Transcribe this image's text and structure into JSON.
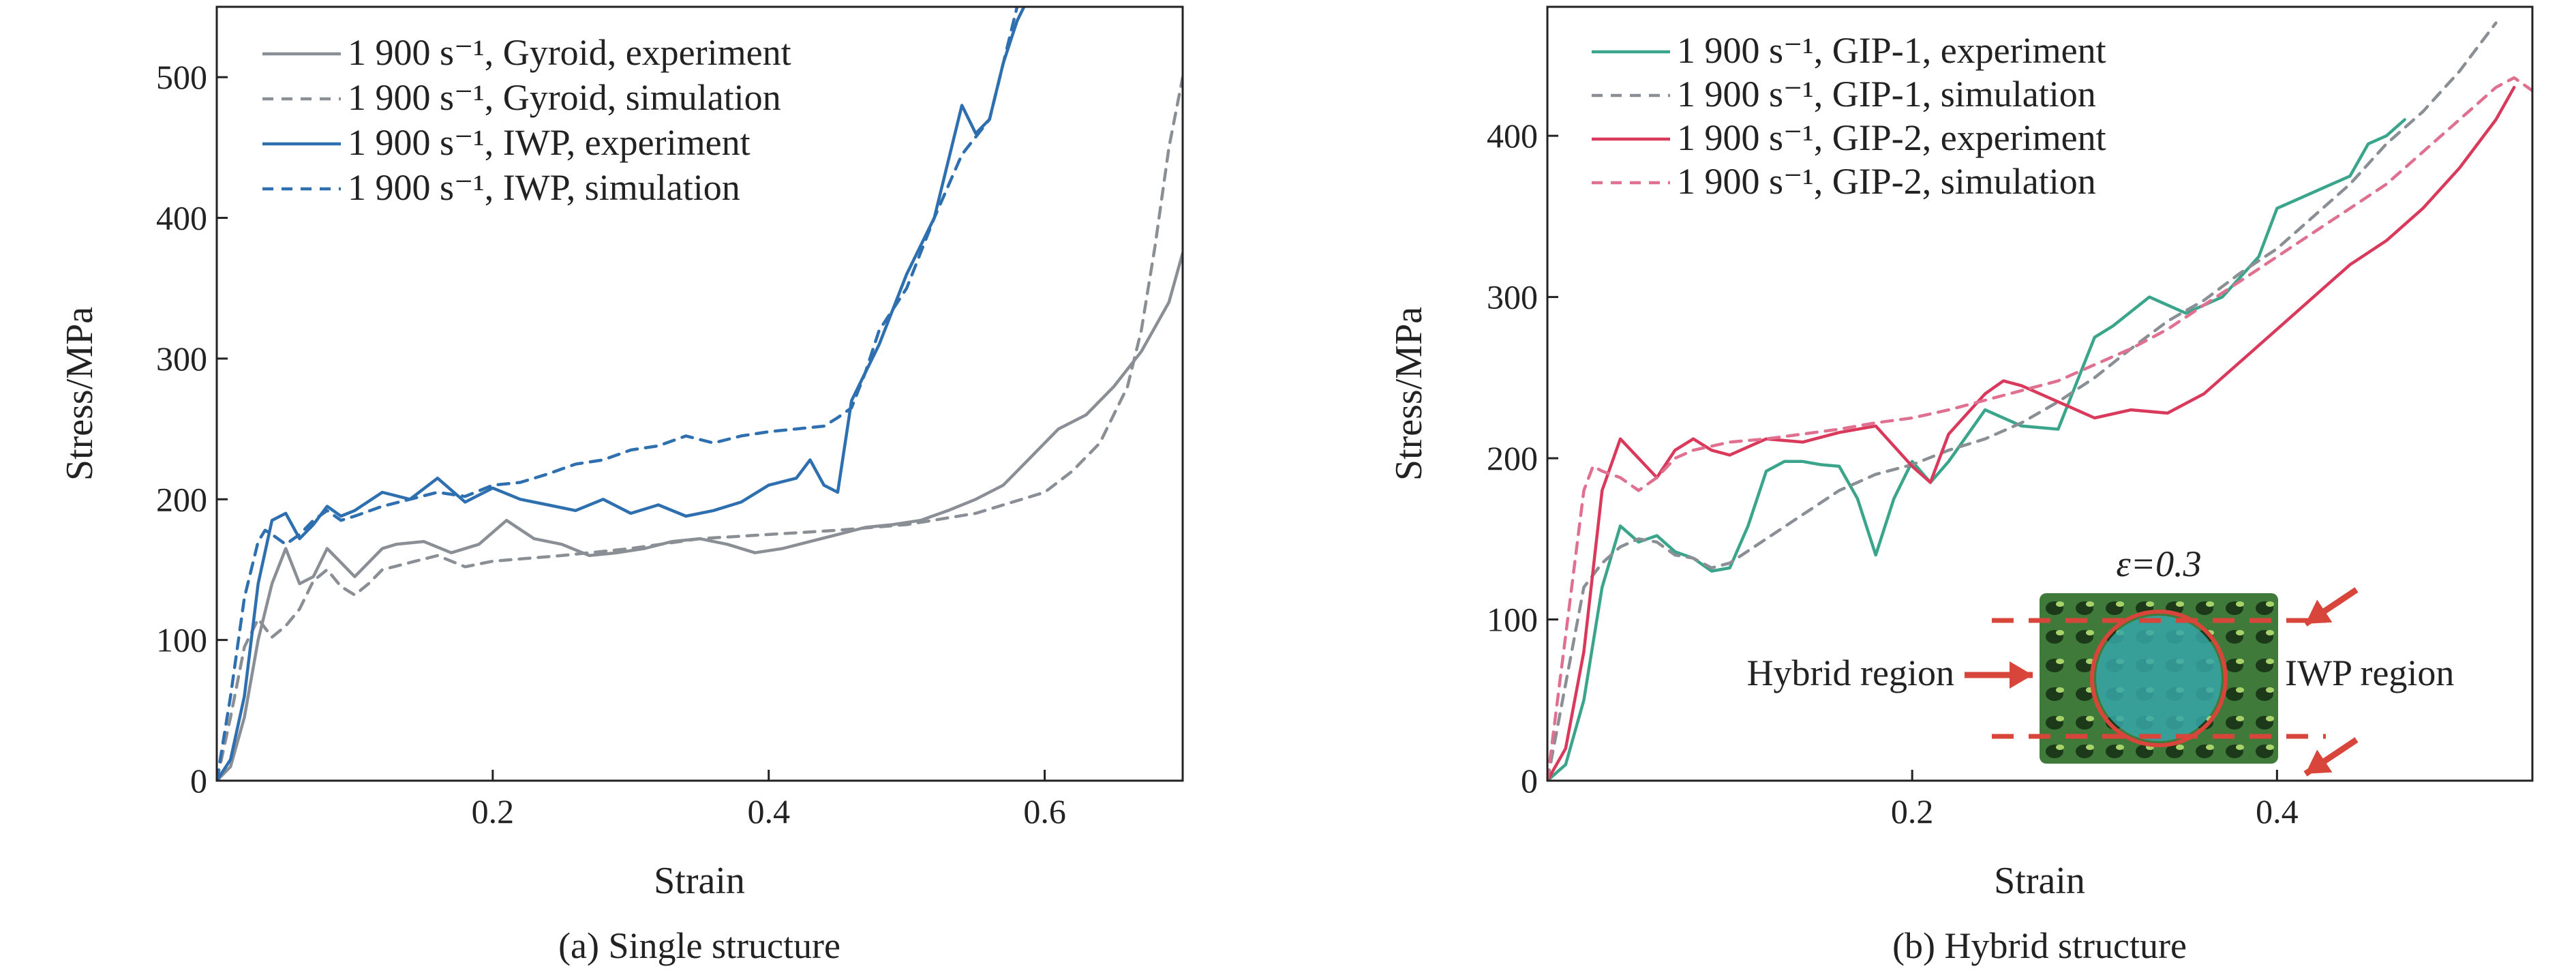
{
  "chart_data": [
    {
      "type": "line",
      "caption": "(a) Single structure",
      "xlabel": "Strain",
      "ylabel": "Stress/MPa",
      "xlim": [
        0,
        0.7
      ],
      "ylim": [
        0,
        550
      ],
      "xticks": [
        0.2,
        0.4,
        0.6
      ],
      "yticks": [
        0,
        100,
        200,
        300,
        400,
        500
      ],
      "legend_position": "top-left",
      "series": [
        {
          "name": "1 900 s⁻¹, Gyroid, experiment",
          "color": "#8a8f96",
          "dash": "solid",
          "x": [
            0,
            0.01,
            0.02,
            0.03,
            0.04,
            0.05,
            0.06,
            0.07,
            0.08,
            0.09,
            0.1,
            0.11,
            0.12,
            0.13,
            0.15,
            0.17,
            0.19,
            0.21,
            0.23,
            0.25,
            0.27,
            0.29,
            0.31,
            0.33,
            0.35,
            0.37,
            0.39,
            0.41,
            0.43,
            0.45,
            0.47,
            0.49,
            0.51,
            0.53,
            0.55,
            0.57,
            0.59,
            0.61,
            0.63,
            0.65,
            0.67,
            0.69,
            0.7
          ],
          "y": [
            0,
            10,
            45,
            100,
            140,
            165,
            140,
            145,
            165,
            155,
            145,
            155,
            165,
            168,
            170,
            162,
            168,
            185,
            172,
            168,
            160,
            162,
            165,
            170,
            172,
            168,
            162,
            165,
            170,
            175,
            180,
            182,
            185,
            192,
            200,
            210,
            230,
            250,
            260,
            280,
            305,
            340,
            375
          ]
        },
        {
          "name": "1 900 s⁻¹, Gyroid, simulation",
          "color": "#8a8f96",
          "dash": "dashed",
          "x": [
            0,
            0.01,
            0.02,
            0.03,
            0.04,
            0.05,
            0.06,
            0.07,
            0.08,
            0.09,
            0.1,
            0.11,
            0.12,
            0.14,
            0.16,
            0.18,
            0.2,
            0.25,
            0.3,
            0.35,
            0.4,
            0.45,
            0.5,
            0.55,
            0.6,
            0.62,
            0.64,
            0.66,
            0.67,
            0.68,
            0.69,
            0.7
          ],
          "y": [
            0,
            45,
            95,
            115,
            102,
            110,
            122,
            142,
            150,
            138,
            132,
            140,
            150,
            155,
            160,
            152,
            156,
            160,
            165,
            172,
            175,
            178,
            182,
            190,
            205,
            220,
            240,
            280,
            320,
            380,
            450,
            500
          ]
        },
        {
          "name": "1 900 s⁻¹, IWP, experiment",
          "color": "#2e6fb0",
          "dash": "solid",
          "x": [
            0,
            0.01,
            0.02,
            0.03,
            0.04,
            0.05,
            0.06,
            0.07,
            0.08,
            0.09,
            0.1,
            0.12,
            0.14,
            0.16,
            0.18,
            0.2,
            0.22,
            0.24,
            0.26,
            0.28,
            0.3,
            0.32,
            0.34,
            0.36,
            0.38,
            0.4,
            0.42,
            0.43,
            0.44,
            0.45,
            0.46,
            0.47,
            0.48,
            0.5,
            0.52,
            0.54,
            0.55,
            0.56,
            0.57,
            0.58,
            0.59
          ],
          "y": [
            0,
            15,
            60,
            140,
            185,
            190,
            172,
            182,
            195,
            188,
            192,
            205,
            200,
            215,
            198,
            208,
            200,
            196,
            192,
            200,
            190,
            196,
            188,
            192,
            198,
            210,
            215,
            228,
            210,
            205,
            270,
            290,
            310,
            360,
            400,
            480,
            460,
            470,
            510,
            540,
            560
          ]
        },
        {
          "name": "1 900 s⁻¹, IWP, simulation",
          "color": "#2e6fb0",
          "dash": "dashed",
          "x": [
            0,
            0.01,
            0.02,
            0.03,
            0.035,
            0.04,
            0.05,
            0.06,
            0.07,
            0.08,
            0.09,
            0.1,
            0.12,
            0.14,
            0.16,
            0.18,
            0.2,
            0.22,
            0.24,
            0.26,
            0.28,
            0.3,
            0.32,
            0.34,
            0.36,
            0.38,
            0.4,
            0.42,
            0.44,
            0.45,
            0.46,
            0.47,
            0.48,
            0.5,
            0.52,
            0.54,
            0.56,
            0.58
          ],
          "y": [
            0,
            60,
            130,
            170,
            178,
            175,
            168,
            175,
            185,
            192,
            185,
            188,
            195,
            200,
            205,
            202,
            210,
            212,
            218,
            225,
            228,
            235,
            238,
            245,
            240,
            245,
            248,
            250,
            252,
            258,
            265,
            290,
            320,
            350,
            400,
            445,
            470,
            550
          ]
        }
      ]
    },
    {
      "type": "line",
      "caption": "(b) Hybrid structure",
      "xlabel": "Strain",
      "ylabel": "Stress/MPa",
      "xlim": [
        0,
        0.54
      ],
      "ylim": [
        0,
        480
      ],
      "xticks": [
        0.2,
        0.4
      ],
      "yticks": [
        0,
        100,
        200,
        300,
        400
      ],
      "legend_position": "top-left",
      "series": [
        {
          "name": "1 900 s⁻¹, GIP-1, experiment",
          "color": "#3aa58a",
          "dash": "solid",
          "x": [
            0,
            0.01,
            0.02,
            0.03,
            0.04,
            0.05,
            0.06,
            0.07,
            0.08,
            0.09,
            0.1,
            0.11,
            0.12,
            0.13,
            0.14,
            0.15,
            0.16,
            0.17,
            0.18,
            0.19,
            0.2,
            0.21,
            0.22,
            0.24,
            0.26,
            0.28,
            0.3,
            0.31,
            0.33,
            0.35,
            0.37,
            0.39,
            0.4,
            0.41,
            0.43,
            0.44,
            0.45,
            0.46,
            0.47
          ],
          "y": [
            0,
            10,
            50,
            120,
            158,
            148,
            152,
            142,
            138,
            130,
            132,
            158,
            192,
            198,
            198,
            196,
            195,
            175,
            140,
            175,
            198,
            185,
            198,
            230,
            220,
            218,
            275,
            282,
            300,
            290,
            300,
            325,
            355,
            360,
            370,
            375,
            395,
            400,
            410
          ]
        },
        {
          "name": "1 900 s⁻¹, GIP-1, simulation",
          "color": "#8a8f96",
          "dash": "dashed",
          "x": [
            0,
            0.01,
            0.02,
            0.03,
            0.04,
            0.05,
            0.06,
            0.07,
            0.08,
            0.09,
            0.1,
            0.12,
            0.14,
            0.16,
            0.18,
            0.2,
            0.22,
            0.24,
            0.26,
            0.28,
            0.3,
            0.32,
            0.34,
            0.36,
            0.38,
            0.4,
            0.42,
            0.44,
            0.46,
            0.48,
            0.5,
            0.52
          ],
          "y": [
            0,
            60,
            120,
            135,
            145,
            150,
            148,
            140,
            138,
            132,
            135,
            150,
            165,
            180,
            190,
            196,
            205,
            212,
            222,
            235,
            250,
            268,
            285,
            298,
            315,
            330,
            350,
            370,
            395,
            415,
            440,
            470
          ]
        },
        {
          "name": "1 900 s⁻¹, GIP-2, experiment",
          "color": "#d93a5c",
          "dash": "solid",
          "x": [
            0,
            0.01,
            0.02,
            0.03,
            0.04,
            0.05,
            0.06,
            0.07,
            0.08,
            0.09,
            0.1,
            0.12,
            0.14,
            0.16,
            0.18,
            0.2,
            0.21,
            0.22,
            0.24,
            0.25,
            0.26,
            0.28,
            0.3,
            0.32,
            0.34,
            0.36,
            0.38,
            0.4,
            0.42,
            0.44,
            0.46,
            0.48,
            0.5,
            0.52,
            0.53
          ],
          "y": [
            0,
            20,
            80,
            180,
            212,
            200,
            188,
            205,
            212,
            205,
            202,
            212,
            210,
            216,
            220,
            195,
            185,
            215,
            240,
            248,
            245,
            235,
            225,
            230,
            228,
            240,
            260,
            280,
            300,
            320,
            335,
            355,
            380,
            410,
            430
          ]
        },
        {
          "name": "1 900 s⁻¹, GIP-2, simulation",
          "color": "#e07090",
          "dash": "dashed",
          "x": [
            0,
            0.01,
            0.02,
            0.025,
            0.03,
            0.04,
            0.05,
            0.06,
            0.07,
            0.08,
            0.1,
            0.12,
            0.14,
            0.16,
            0.18,
            0.2,
            0.22,
            0.24,
            0.26,
            0.28,
            0.3,
            0.32,
            0.34,
            0.36,
            0.38,
            0.4,
            0.42,
            0.44,
            0.46,
            0.48,
            0.5,
            0.52,
            0.53,
            0.54
          ],
          "y": [
            0,
            90,
            180,
            195,
            192,
            188,
            180,
            188,
            200,
            205,
            210,
            212,
            215,
            218,
            222,
            225,
            230,
            236,
            242,
            248,
            258,
            268,
            280,
            295,
            310,
            325,
            340,
            355,
            370,
            390,
            410,
            430,
            436,
            428
          ]
        }
      ],
      "annotation": {
        "strain_label": "ε=0.3",
        "left_label": "Hybrid region",
        "right_label": "IWP region"
      }
    }
  ]
}
